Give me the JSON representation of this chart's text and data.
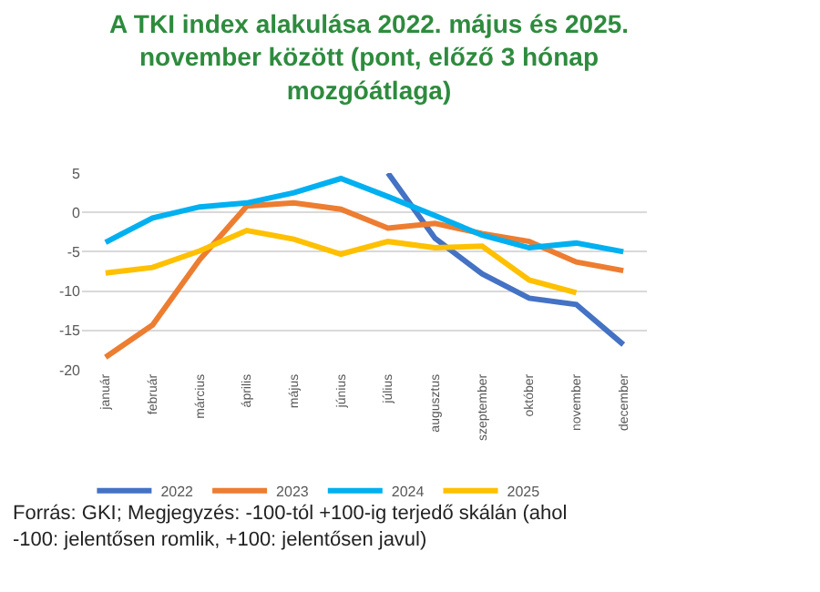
{
  "chart_data": {
    "type": "line",
    "title": "A TKI index alakulása 2022. május és 2025. november között (pont, előző 3 hónap mozgóátlaga)",
    "categories": [
      "január",
      "február",
      "március",
      "április",
      "május",
      "június",
      "július",
      "augusztus",
      "szeptember",
      "október",
      "november",
      "december"
    ],
    "series": [
      {
        "name": "2022",
        "color": "#4472c4",
        "values": [
          null,
          null,
          null,
          null,
          null,
          null,
          5,
          -3.3,
          -7.8,
          -10.9,
          -11.7,
          -16.8
        ]
      },
      {
        "name": "2023",
        "color": "#ed7d31",
        "values": [
          -18.4,
          -14.3,
          -6,
          0.8,
          1.2,
          0.4,
          -2,
          -1.4,
          -2.7,
          -3.7,
          -6.3,
          -7.4
        ]
      },
      {
        "name": "2024",
        "color": "#00b0f0",
        "values": [
          -3.8,
          -0.7,
          0.7,
          1.2,
          2.5,
          4.3,
          2,
          -0.4,
          -2.9,
          -4.5,
          -3.9,
          -5
        ]
      },
      {
        "name": "2025",
        "color": "#ffc000",
        "values": [
          -7.7,
          -7,
          -4.9,
          -2.3,
          -3.4,
          -5.3,
          -3.7,
          -4.5,
          -4.3,
          -8.6,
          -10.2,
          null
        ]
      }
    ],
    "ylim": [
      -20,
      5
    ],
    "yticks": [
      -20,
      -15,
      -10,
      -5,
      0,
      5
    ],
    "grid": "y",
    "legend": "bottom",
    "marker": "none",
    "line_style": "solid",
    "annotations": [
      "Forrás: GKI; Megjegyzés: -100-tól +100-ig terjedő skálán (ahol -100: jelentősen romlik, +100: jelentősen javul)"
    ]
  }
}
